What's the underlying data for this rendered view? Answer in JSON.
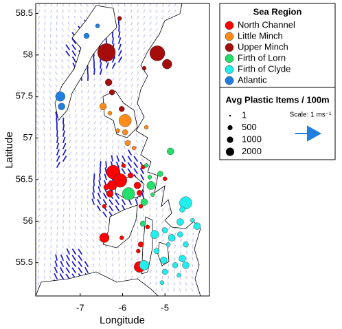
{
  "chart_data": {
    "type": "scatter",
    "xlabel": "Longitude",
    "ylabel": "Latitude",
    "xlim": [
      -8.05,
      -3.95
    ],
    "xticks": [
      -7,
      -6,
      -5
    ],
    "ylim": [
      55.1,
      58.62
    ],
    "yticks": [
      55.5,
      56,
      56.5,
      57,
      57.5,
      58,
      58.5
    ],
    "legend_title": "Sea Region",
    "size_legend": {
      "title": "Avg Plastic Items / 100m",
      "values": [
        1,
        500,
        1000,
        2000
      ]
    },
    "scale_label": "Scale: 1 ms⁻¹",
    "series": [
      {
        "name": "North Channel",
        "color": "#ff0000",
        "x": [
          -6.22,
          -6.06,
          -6.25,
          -6.3,
          -6.38,
          -5.65,
          -5.52,
          -5.98,
          -6.43,
          -6.43,
          -5.57,
          -5.41,
          -5.57,
          -5.6,
          -5.0,
          -5.63,
          -5.6,
          -6.02,
          -5.81
        ],
        "y": [
          56.59,
          56.49,
          56.43,
          56.33,
          56.41,
          56.43,
          56.65,
          56.67,
          56.18,
          55.8,
          55.72,
          55.93,
          56.18,
          56.34,
          56.51,
          55.64,
          55.45,
          55.8,
          56.55
        ],
        "size": [
          6640,
          6640,
          2880,
          1240,
          670,
          1240,
          280,
          280,
          280,
          2880,
          670,
          280,
          280,
          670,
          280,
          280,
          3960,
          280,
          670
        ]
      },
      {
        "name": "Little Minch",
        "color": "#ff8c1a",
        "x": [
          -5.94,
          -6.46,
          -5.94,
          -5.88,
          -6.11,
          -5.44,
          -5.73,
          -6.3
        ],
        "y": [
          57.21,
          57.38,
          57.07,
          56.94,
          57.09,
          57.13,
          56.88,
          57.3
        ],
        "size": [
          5220,
          1240,
          670,
          670,
          280,
          280,
          280,
          280
        ]
      },
      {
        "name": "Upper Minch",
        "color": "#a50d0d",
        "x": [
          -6.38,
          -5.18,
          -4.95,
          -6.33,
          -6.25,
          -6.02,
          -5.49,
          -6.07
        ],
        "y": [
          58.03,
          58.02,
          57.89,
          57.67,
          57.55,
          57.35,
          57.84,
          58.44
        ],
        "size": [
          11940,
          8230,
          2880,
          1240,
          670,
          670,
          280,
          280
        ]
      },
      {
        "name": "Firth of Lorn",
        "color": "#22e06a",
        "x": [
          -5.86,
          -5.49,
          -5.33,
          -4.87,
          -5.11,
          -5.44,
          -5.36,
          -5.52,
          -5.29
        ],
        "y": [
          56.33,
          56.23,
          56.43,
          56.84,
          56.57,
          56.67,
          56.53,
          55.97,
          56.32
        ],
        "size": [
          5220,
          1240,
          1980,
          1240,
          670,
          280,
          280,
          670,
          280
        ]
      },
      {
        "name": "Firth of Clyde",
        "color": "#22eeee",
        "x": [
          -4.51,
          -5.49,
          -5.24,
          -4.64,
          -4.24,
          -4.84,
          -4.64,
          -5.0,
          -5.2,
          -5.03,
          -4.59,
          -4.51,
          -4.76,
          -5.0,
          -4.51,
          -4.92,
          -5.07,
          -4.59,
          -4.35,
          -4.67
        ],
        "y": [
          56.22,
          55.47,
          55.84,
          55.99,
          55.94,
          55.8,
          55.84,
          55.89,
          55.64,
          55.53,
          55.55,
          55.47,
          55.47,
          55.39,
          55.72,
          55.72,
          55.26,
          56.14,
          56.01,
          55.35
        ],
        "size": [
          5220,
          2880,
          1980,
          1240,
          1240,
          1240,
          670,
          670,
          670,
          1240,
          1240,
          1240,
          670,
          670,
          670,
          280,
          280,
          670,
          280,
          280
        ]
      },
      {
        "name": "Atlantic",
        "color": "#1f7fe0",
        "x": [
          -7.47,
          -7.44,
          -6.85,
          -6.59
        ],
        "y": [
          57.5,
          57.38,
          58.23,
          58.35
        ],
        "size": [
          2880,
          1240,
          670,
          280
        ]
      }
    ]
  }
}
